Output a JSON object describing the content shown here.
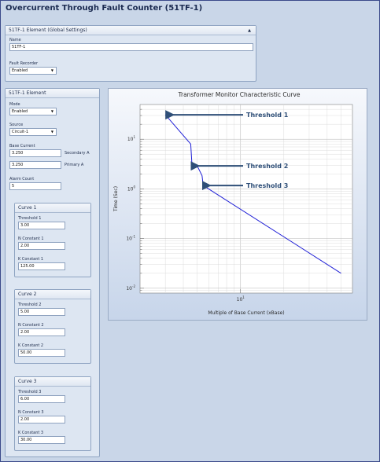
{
  "window": {
    "title": "Overcurrent Through Fault Counter (51TF-1)"
  },
  "global_settings": {
    "header": "51TF-1 Element (Global Settings)",
    "collapse_icon": "caret-up-icon",
    "name_label": "Name",
    "name_value": "51TF-1",
    "fault_recorder_label": "Fault Recorder",
    "fault_recorder_value": "Enabled"
  },
  "element": {
    "header": "51TF-1 Element",
    "mode_label": "Mode",
    "mode_value": "Enabled",
    "source_label": "Source",
    "source_value": "Circuit-1",
    "base_current_label": "Base Current",
    "base_current_secondary": "3.250",
    "secondary_unit": "Secondary A",
    "base_current_primary": "3.250",
    "primary_unit": "Primary A",
    "alarm_count_label": "Alarm Count",
    "alarm_count_value": "5"
  },
  "curves": [
    {
      "header": "Curve 1",
      "threshold_label": "Threshold 1",
      "threshold_value": "3.00",
      "n_label": "N Constant 1",
      "n_value": "2.00",
      "k_label": "K Constant 1",
      "k_value": "125.00"
    },
    {
      "header": "Curve 2",
      "threshold_label": "Threshold 2",
      "threshold_value": "5.00",
      "n_label": "N Constant 2",
      "n_value": "2.00",
      "k_label": "K Constant 2",
      "k_value": "50.00"
    },
    {
      "header": "Curve 3",
      "threshold_label": "Threshold 3",
      "threshold_value": "6.00",
      "n_label": "N Constant 3",
      "n_value": "2.00",
      "k_label": "K Constant 3",
      "k_value": "30.00"
    }
  ],
  "chart_data": {
    "type": "line",
    "title": "Transformer Monitor Characteristic Curve",
    "xlabel": "Multiple of Base Current (xBase)",
    "ylabel": "Time (Sec)",
    "x_scale": "log",
    "y_scale": "log",
    "xlim": [
      2,
      60
    ],
    "ylim": [
      0.008,
      50
    ],
    "x_ticks": [
      {
        "value": 10,
        "base": "10",
        "exp": "1"
      }
    ],
    "y_ticks": [
      {
        "value": 0.01,
        "base": "10",
        "exp": "-2"
      },
      {
        "value": 0.1,
        "base": "10",
        "exp": "-1"
      },
      {
        "value": 1,
        "base": "10",
        "exp": "0"
      },
      {
        "value": 10,
        "base": "10",
        "exp": "1"
      }
    ],
    "grid": true,
    "line_color": "#1f1fd6",
    "arrow_color": "#2f4f78",
    "series": [
      {
        "x": [
          3.0,
          4.5,
          4.6,
          5.0,
          5.4,
          5.5,
          50
        ],
        "y": [
          31,
          8.0,
          2.9,
          2.9,
          1.85,
          1.17,
          0.02
        ]
      }
    ],
    "annotations": [
      {
        "text": "Threshold 1",
        "x": 3.0,
        "y": 31
      },
      {
        "text": "Threshold 2",
        "x": 4.5,
        "y": 2.9
      },
      {
        "text": "Threshold 3",
        "x": 5.4,
        "y": 1.17
      }
    ]
  }
}
